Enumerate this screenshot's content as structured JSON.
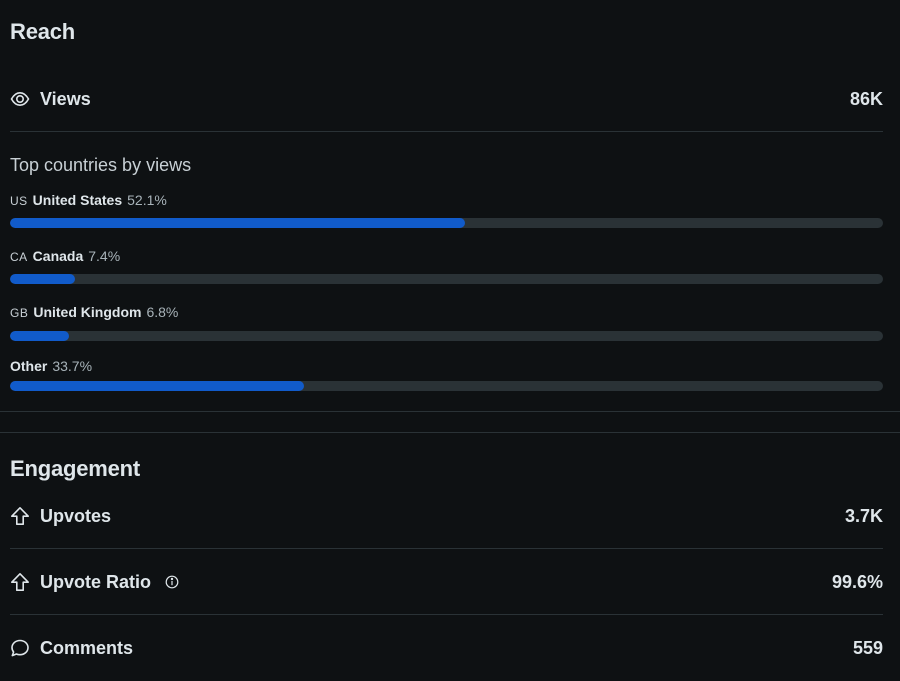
{
  "reach": {
    "title": "Reach",
    "views": {
      "label": "Views",
      "value": "86K",
      "icon": "eye-icon"
    },
    "countries_heading": "Top countries by views",
    "countries": [
      {
        "code": "US",
        "name": "United States",
        "pct_label": "52.1%",
        "fraction": 0.521
      },
      {
        "code": "CA",
        "name": "Canada",
        "pct_label": "7.4%",
        "fraction": 0.074
      },
      {
        "code": "GB",
        "name": "United Kingdom",
        "pct_label": "6.8%",
        "fraction": 0.068
      },
      {
        "code": "",
        "name": "Other",
        "pct_label": "33.7%",
        "fraction": 0.337
      }
    ]
  },
  "engagement": {
    "title": "Engagement",
    "upvotes": {
      "label": "Upvotes",
      "value": "3.7K",
      "icon": "upvote-arrow-icon"
    },
    "upvote_ratio": {
      "label": "Upvote Ratio",
      "value": "99.6%",
      "icon": "upvote-arrow-icon",
      "info_icon": "info-icon"
    },
    "comments": {
      "label": "Comments",
      "value": "559",
      "icon": "comment-bubble-icon"
    }
  },
  "colors": {
    "background": "#0e1113",
    "bar_fill": "#115bca",
    "bar_track": "#2a3236",
    "divider": "#2a3236"
  }
}
